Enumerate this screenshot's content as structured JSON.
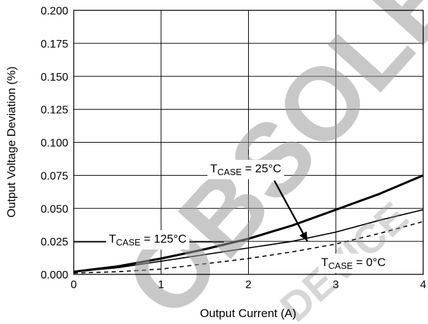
{
  "chart_data": {
    "type": "line",
    "xlabel": "Output Current (A)",
    "ylabel": "Output Voltage Deviation (%)",
    "xlim": [
      0,
      4
    ],
    "ylim": [
      0,
      0.2
    ],
    "x_ticks": [
      "0",
      "1",
      "2",
      "3",
      "4"
    ],
    "y_ticks": [
      "0.000",
      "0.025",
      "0.050",
      "0.075",
      "0.100",
      "0.125",
      "0.150",
      "0.175",
      "0.200"
    ],
    "grid": true,
    "series": [
      {
        "name": "T_CASE = 25°C",
        "style": "thick",
        "x": [
          0,
          0.5,
          1,
          1.5,
          2,
          2.5,
          3,
          3.5,
          4
        ],
        "y": [
          0.002,
          0.006,
          0.012,
          0.019,
          0.027,
          0.037,
          0.049,
          0.061,
          0.075
        ]
      },
      {
        "name": "T_CASE = 125°C",
        "style": "thin",
        "x": [
          0,
          0.5,
          1,
          1.5,
          2,
          2.5,
          3,
          3.5,
          4
        ],
        "y": [
          0.002,
          0.005,
          0.01,
          0.015,
          0.02,
          0.025,
          0.032,
          0.041,
          0.049
        ]
      },
      {
        "name": "T_CASE = 0°C",
        "style": "dashed",
        "x": [
          0,
          0.5,
          1,
          1.5,
          2,
          2.5,
          3,
          3.5,
          4
        ],
        "y": [
          0.001,
          0.002,
          0.004,
          0.008,
          0.012,
          0.017,
          0.023,
          0.031,
          0.04
        ]
      }
    ],
    "annotations": [
      {
        "label_main": "T",
        "label_sub": "CASE",
        "label_rest": " = 25°C"
      },
      {
        "label_main": "T",
        "label_sub": "CASE",
        "label_rest": " = 125°C"
      },
      {
        "label_main": "T",
        "label_sub": "CASE",
        "label_rest": " = 0°C"
      }
    ],
    "watermark": "OBSOLETE DEVICE",
    "colors": {
      "lines": "#000000",
      "grid": "#000000",
      "watermark": "#000000"
    }
  }
}
